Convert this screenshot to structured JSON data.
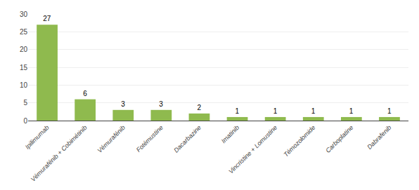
{
  "chart_data": {
    "type": "bar",
    "categories": [
      "Ipilimumab",
      "Vémurafénib + Cobimétinib",
      "Vémurafénib",
      "Fotémustine",
      "Dacarbazine",
      "Imatinib",
      "Vincristine + Lomustine",
      "Témozolomide",
      "Carboplatine",
      "Dabrafenib"
    ],
    "values": [
      27,
      6,
      3,
      3,
      2,
      1,
      1,
      1,
      1,
      1
    ],
    "color": "#8fba4e",
    "ylim": [
      0,
      30
    ],
    "yticks": [
      0,
      5,
      10,
      15,
      20,
      25,
      30
    ],
    "grid": true,
    "data_labels": true
  }
}
